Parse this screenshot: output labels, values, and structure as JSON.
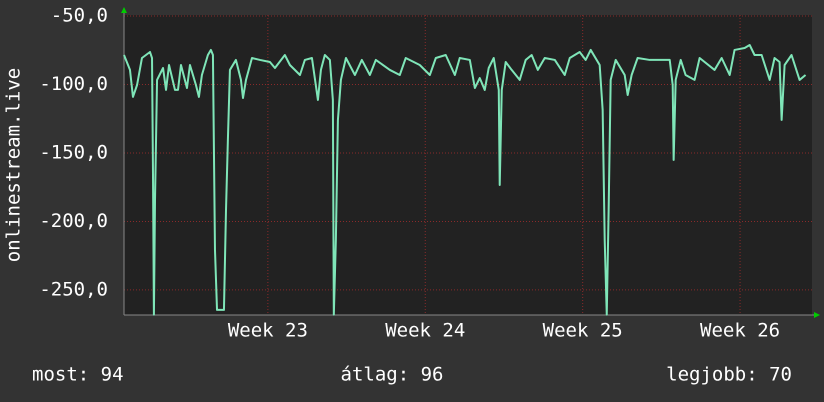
{
  "chart_data": {
    "type": "line",
    "y_label": "onlinestream.live",
    "ylim": [
      -268.3,
      -49.3
    ],
    "yticks": [
      {
        "value": -50,
        "label": "-50,0"
      },
      {
        "value": -100,
        "label": "-100,0"
      },
      {
        "value": -150,
        "label": "-150,0"
      },
      {
        "value": -200,
        "label": "-200,0"
      },
      {
        "value": -250,
        "label": "-250,0"
      }
    ],
    "xlim": [
      22.086,
      26.457
    ],
    "xticks": [
      {
        "value": 23,
        "label": "Week 23"
      },
      {
        "value": 24,
        "label": "Week 24"
      },
      {
        "value": 25,
        "label": "Week 25"
      },
      {
        "value": 26,
        "label": "Week 26"
      }
    ],
    "grid": true,
    "series": [
      {
        "color": "#7fe5b8",
        "x": [
          22.086,
          22.124,
          22.143,
          22.169,
          22.2,
          22.251,
          22.264,
          22.27,
          22.276,
          22.283,
          22.296,
          22.334,
          22.353,
          22.372,
          22.41,
          22.429,
          22.448,
          22.486,
          22.505,
          22.543,
          22.562,
          22.581,
          22.619,
          22.638,
          22.651,
          22.664,
          22.677,
          22.721,
          22.734,
          22.746,
          22.759,
          22.797,
          22.829,
          22.842,
          22.861,
          22.899,
          22.95,
          23.013,
          23.045,
          23.108,
          23.14,
          23.204,
          23.235,
          23.28,
          23.318,
          23.337,
          23.362,
          23.394,
          23.413,
          23.419,
          23.432,
          23.445,
          23.464,
          23.496,
          23.553,
          23.597,
          23.648,
          23.686,
          23.775,
          23.838,
          23.876,
          23.965,
          24.029,
          24.067,
          24.13,
          24.188,
          24.219,
          24.283,
          24.315,
          24.346,
          24.378,
          24.403,
          24.435,
          24.467,
          24.473,
          24.486,
          24.511,
          24.549,
          24.6,
          24.638,
          24.676,
          24.715,
          24.759,
          24.823,
          24.886,
          24.918,
          24.981,
          25.019,
          25.051,
          25.108,
          25.127,
          25.14,
          25.153,
          25.165,
          25.178,
          25.21,
          25.267,
          25.286,
          25.311,
          25.349,
          25.426,
          25.489,
          25.553,
          25.572,
          25.578,
          25.591,
          25.623,
          25.654,
          25.711,
          25.743,
          25.838,
          25.883,
          25.934,
          25.965,
          26.029,
          26.061,
          26.092,
          26.137,
          26.188,
          26.219,
          26.251,
          26.264,
          26.283,
          26.327,
          26.378,
          26.416
        ],
        "values": [
          -78.5,
          -89.4,
          -109.1,
          -100.4,
          -80.7,
          -76.3,
          -80.7,
          -162.4,
          -268,
          -184.3,
          -96.7,
          -88.0,
          -104.0,
          -85.8,
          -104.0,
          -104.0,
          -85.8,
          -102.6,
          -85.8,
          -100.4,
          -109.1,
          -93.1,
          -78.5,
          -74.8,
          -78.5,
          -220.8,
          -264.6,
          -264.6,
          -191.6,
          -140.5,
          -89.4,
          -82.1,
          -96.7,
          -109.9,
          -96.7,
          -80.7,
          -82.1,
          -83.6,
          -88.0,
          -78.5,
          -85.8,
          -93.1,
          -82.1,
          -80.7,
          -111.3,
          -89.4,
          -78.5,
          -82.1,
          -111.3,
          -268,
          -213.5,
          -125.9,
          -96.7,
          -80.7,
          -93.1,
          -82.1,
          -93.1,
          -82.1,
          -89.4,
          -93.1,
          -80.7,
          -85.8,
          -93.1,
          -80.7,
          -78.5,
          -93.1,
          -80.7,
          -82.1,
          -102.6,
          -95.3,
          -104.0,
          -88.0,
          -80.7,
          -104.0,
          -173.4,
          -104.0,
          -83.6,
          -89.4,
          -96.7,
          -82.1,
          -78.5,
          -89.4,
          -80.7,
          -82.1,
          -93.1,
          -80.7,
          -76.3,
          -82.1,
          -74.8,
          -85.8,
          -118.6,
          -213.5,
          -268,
          -191.6,
          -96.7,
          -82.1,
          -93.1,
          -107.7,
          -93.1,
          -80.7,
          -82.1,
          -82.1,
          -82.1,
          -100.4,
          -155.1,
          -96.7,
          -82.1,
          -93.1,
          -96.7,
          -80.7,
          -89.4,
          -80.7,
          -93.1,
          -74.8,
          -73.4,
          -71.2,
          -78.5,
          -78.5,
          -96.7,
          -80.7,
          -83.6,
          -125.9,
          -85.8,
          -78.5,
          -96.7,
          -93.1
        ]
      }
    ]
  },
  "footer": {
    "current": "most: 94",
    "average": "átlag: 96",
    "best": "legjobb: 70"
  }
}
